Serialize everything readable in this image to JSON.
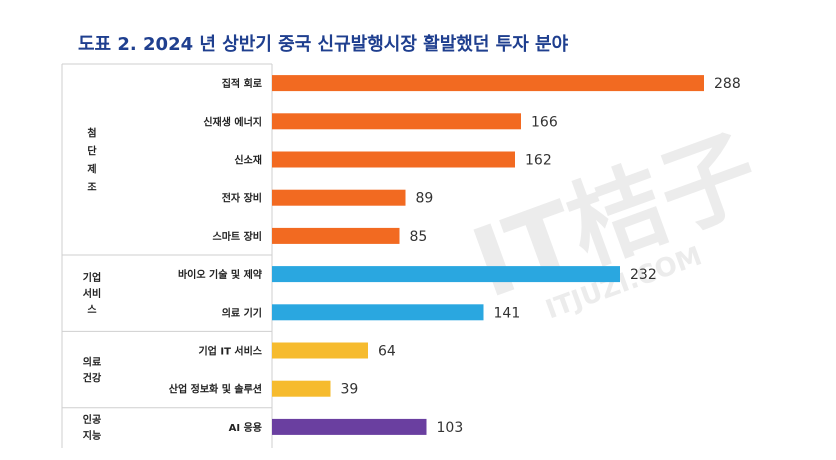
{
  "chart_data": {
    "type": "bar",
    "orientation": "horizontal",
    "title": "도표 2. 2024 년 상반기 중국 신규발행시장 활발했던 투자 분야",
    "xlim": [
      0,
      288
    ],
    "groups": [
      {
        "label_lines": [
          "첨",
          "단",
          "제",
          "조"
        ],
        "color": "#f26a21",
        "categories": [
          "집적 회로",
          "신재생 에너지",
          "신소재",
          "전자 장비",
          "스마트 장비"
        ],
        "values": [
          288,
          166,
          162,
          89,
          85
        ]
      },
      {
        "label_lines": [
          "기업",
          "서비",
          "스"
        ],
        "color": "#2aa7e0",
        "categories": [
          "바이오 기술 및 제약",
          "의료 기기"
        ],
        "values": [
          232,
          141
        ]
      },
      {
        "label_lines": [
          "의료",
          "건강"
        ],
        "color": "#f6bb2e",
        "categories": [
          "기업 IT 서비스",
          "산업 정보화 및 솔루션"
        ],
        "values": [
          64,
          39
        ]
      },
      {
        "label_lines": [
          "인공",
          "지능"
        ],
        "color": "#6a3fa0",
        "categories": [
          "AI 응용"
        ],
        "values": [
          103
        ]
      }
    ]
  },
  "watermark": {
    "main": "IT桔子",
    "sub": "ITJUZI.COM"
  }
}
